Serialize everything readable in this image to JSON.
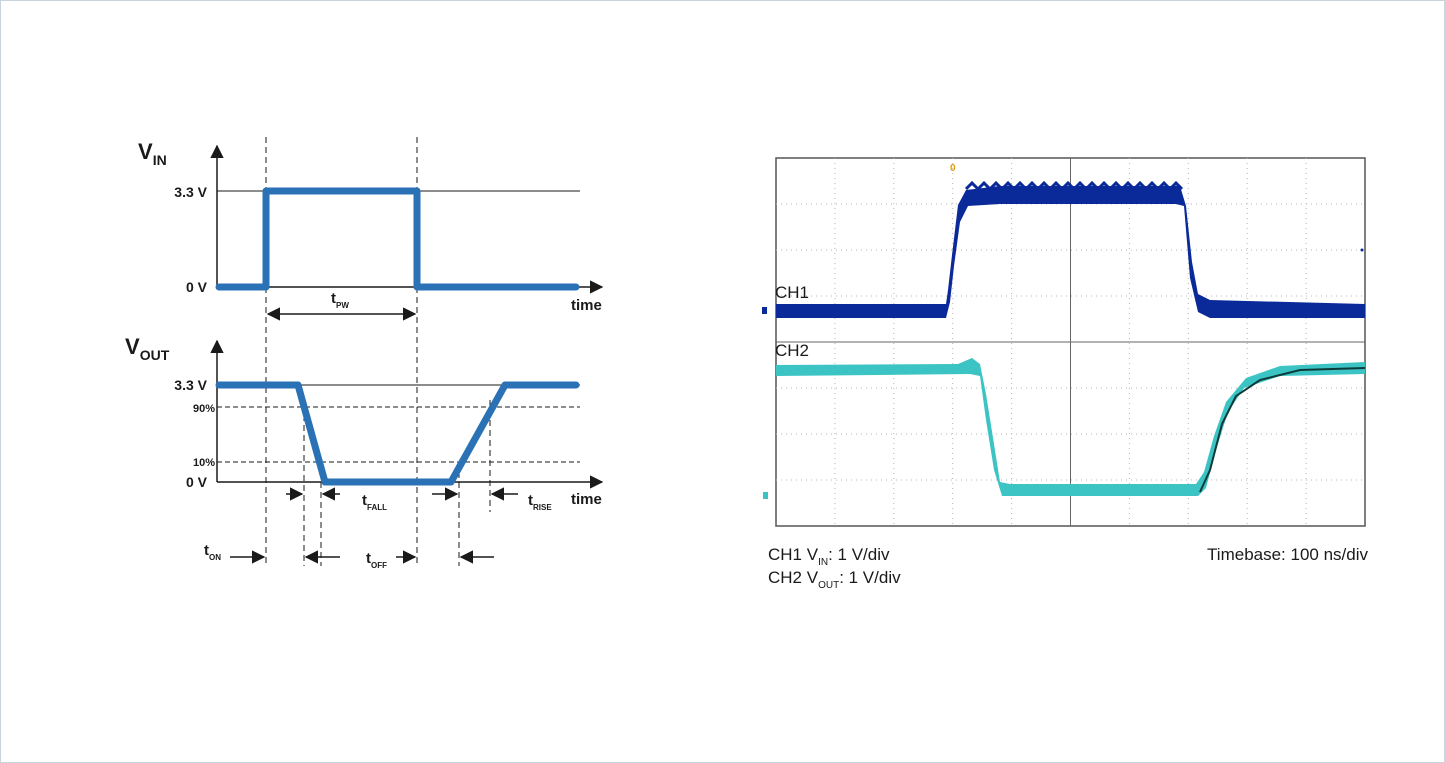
{
  "timing_diagram": {
    "vin_axis": {
      "main": "V",
      "sub": "IN"
    },
    "vout_axis": {
      "main": "V",
      "sub": "OUT"
    },
    "vin_high": "3.3 V",
    "vin_low": "0 V",
    "vout_high": "3.3 V",
    "vout_low": "0 V",
    "pct_90": "90%",
    "pct_10": "10%",
    "time_label": "time",
    "t_pw": {
      "main": "t",
      "sub": "PW"
    },
    "t_fall": {
      "main": "t",
      "sub": "FALL"
    },
    "t_rise": {
      "main": "t",
      "sub": "RISE"
    },
    "t_on": {
      "main": "t",
      "sub": "ON"
    },
    "t_off": {
      "main": "t",
      "sub": "OFF"
    },
    "trace_color": "#2a72b5"
  },
  "scope": {
    "ch1_label": "CH1",
    "ch2_label": "CH2",
    "ch1_desc": {
      "pre": "CH1 V",
      "sub": "IN",
      "post": ": 1 V/div"
    },
    "ch2_desc": {
      "pre": "CH2 V",
      "sub": "OUT",
      "post": ": 1 V/div"
    },
    "timebase": "Timebase: 100 ns/div",
    "ch1_color": "#0a2a9a",
    "ch2_color": "#3cc4c4"
  }
}
